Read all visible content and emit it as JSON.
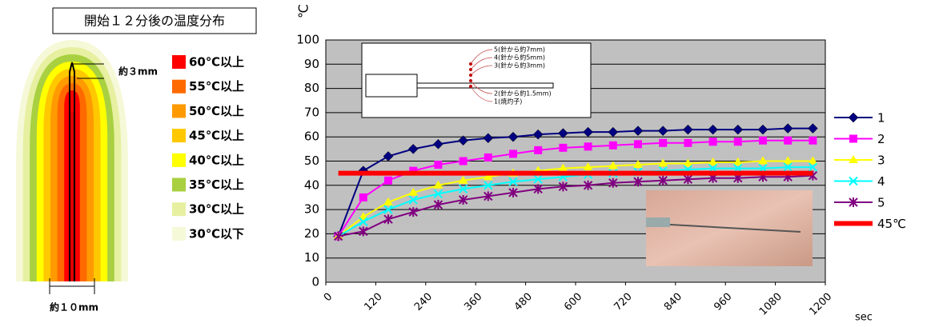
{
  "diagram": {
    "title": "開始１２分後の温度分布",
    "tip_label": "約３mm",
    "width_label": "約１０mm",
    "legend": [
      {
        "label": "60℃以上",
        "color": "#ff0000"
      },
      {
        "label": "55℃以上",
        "color": "#ff6a00"
      },
      {
        "label": "50℃以上",
        "color": "#ff9a00"
      },
      {
        "label": "45℃以上",
        "color": "#ffc800"
      },
      {
        "label": "40℃以上",
        "color": "#ffff00"
      },
      {
        "label": "35℃以上",
        "color": "#a8d040"
      },
      {
        "label": "30℃以上",
        "color": "#e6f0a0"
      },
      {
        "label": "30℃以下",
        "color": "#f6f9d8"
      }
    ],
    "inset": {
      "labels": [
        "5(針から約7mm)",
        "4(針から約5mm)",
        "3(針から約3mm)",
        "2(針から約1.5mm)",
        "1(焼灼子)"
      ]
    }
  },
  "chart_data": {
    "type": "line",
    "y_label": "℃",
    "x_label": "sec",
    "x": [
      30,
      90,
      150,
      210,
      270,
      330,
      390,
      450,
      510,
      570,
      630,
      690,
      750,
      810,
      870,
      930,
      990,
      1050,
      1110,
      1170
    ],
    "xlim": [
      0,
      1200
    ],
    "xticks": [
      0,
      120,
      240,
      360,
      480,
      600,
      720,
      840,
      960,
      1080,
      1200
    ],
    "ylim": [
      0,
      100
    ],
    "yticks": [
      0,
      10,
      20,
      30,
      40,
      50,
      60,
      70,
      80,
      90,
      100
    ],
    "grid": true,
    "plot_background": "#c0c0c0",
    "legend_position": "right",
    "series": [
      {
        "name": "1",
        "color": "#000080",
        "marker": "diamond",
        "values": [
          19,
          46,
          52,
          55,
          57,
          58.5,
          59.5,
          60,
          61,
          61.5,
          62,
          62,
          62.5,
          62.5,
          63,
          63,
          63,
          63,
          63.5,
          63.5
        ]
      },
      {
        "name": "2",
        "color": "#ff00ff",
        "marker": "square",
        "values": [
          19,
          35,
          42,
          46,
          48.5,
          50,
          51.5,
          53,
          54.5,
          55.5,
          56,
          56.5,
          57,
          57.5,
          57.5,
          58,
          58,
          58.5,
          58.5,
          58.5
        ]
      },
      {
        "name": "3",
        "color": "#ffff00",
        "marker": "triangle",
        "values": [
          19,
          27,
          33,
          37,
          40,
          42,
          43.5,
          45,
          46,
          47,
          47.5,
          48,
          48.5,
          49,
          49,
          49.5,
          49.5,
          50,
          50,
          50
        ]
      },
      {
        "name": "4",
        "color": "#00ffff",
        "marker": "x",
        "values": [
          19,
          25,
          30,
          34,
          36.5,
          38.5,
          40,
          41.5,
          42.5,
          43.5,
          44.5,
          45,
          45.5,
          46,
          46.5,
          47,
          47,
          47,
          47.5,
          47.5
        ]
      },
      {
        "name": "5",
        "color": "#800080",
        "marker": "asterisk",
        "values": [
          19,
          21,
          26,
          29,
          32,
          34,
          35.5,
          37,
          38.5,
          39.5,
          40,
          41,
          41.5,
          42,
          42.5,
          43,
          43,
          43.5,
          43.5,
          44
        ]
      },
      {
        "name": "45℃",
        "color": "#ff0000",
        "marker": "none",
        "line_width": 6,
        "values": [
          45,
          45,
          45,
          45,
          45,
          45,
          45,
          45,
          45,
          45,
          45,
          45,
          45,
          45,
          45,
          45,
          45,
          45,
          45,
          45
        ]
      }
    ]
  }
}
